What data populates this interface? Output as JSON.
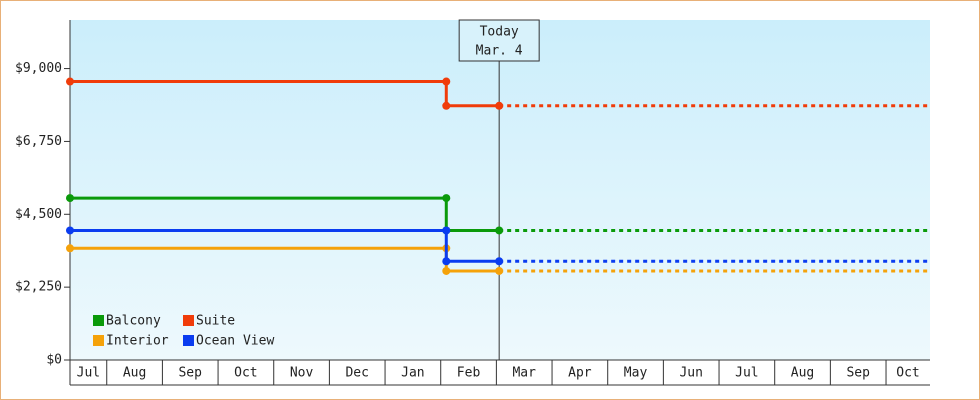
{
  "chart_data": {
    "type": "step-line",
    "xlim": [
      0.34,
      15.79
    ],
    "xticks": [
      {
        "value": 0,
        "label": "Jul"
      },
      {
        "value": 1,
        "label": "Aug"
      },
      {
        "value": 2,
        "label": "Sep"
      },
      {
        "value": 3,
        "label": "Oct"
      },
      {
        "value": 4,
        "label": "Nov"
      },
      {
        "value": 5,
        "label": "Dec"
      },
      {
        "value": 6,
        "label": "Jan"
      },
      {
        "value": 7,
        "label": "Feb"
      },
      {
        "value": 8,
        "label": "Mar"
      },
      {
        "value": 9,
        "label": "Apr"
      },
      {
        "value": 10,
        "label": "May"
      },
      {
        "value": 11,
        "label": "Jun"
      },
      {
        "value": 12,
        "label": "Jul"
      },
      {
        "value": 13,
        "label": "Aug"
      },
      {
        "value": 14,
        "label": "Sep"
      },
      {
        "value": 15,
        "label": "Oct"
      }
    ],
    "ylim": [
      0,
      10500
    ],
    "yticks": [
      {
        "value": 0,
        "label": "$0"
      },
      {
        "value": 2250,
        "label": "$2,250"
      },
      {
        "value": 4500,
        "label": "$4,500"
      },
      {
        "value": 6750,
        "label": "$6,750"
      },
      {
        "value": 9000,
        "label": "$9,000"
      }
    ],
    "today": {
      "x": 8.05,
      "label": [
        "Today",
        "Mar. 4"
      ]
    },
    "legend": "bottom-left",
    "series": [
      {
        "name": "Balcony",
        "color": "#0a9a0a",
        "x": [
          0.34,
          7.1,
          7.1,
          8.05
        ],
        "values": [
          5000,
          5000,
          4000,
          4000
        ]
      },
      {
        "name": "Suite",
        "color": "#f03c0a",
        "x": [
          0.34,
          7.1,
          7.1,
          8.05
        ],
        "values": [
          8600,
          8600,
          7850,
          7850
        ]
      },
      {
        "name": "Interior",
        "color": "#f5a20a",
        "x": [
          0.34,
          7.1,
          7.1,
          8.05
        ],
        "values": [
          3450,
          3450,
          2750,
          2750
        ]
      },
      {
        "name": "Ocean View",
        "color": "#0a3cf0",
        "x": [
          0.34,
          7.1,
          7.1,
          8.05
        ],
        "values": [
          4000,
          4000,
          3050,
          3050
        ]
      }
    ]
  }
}
